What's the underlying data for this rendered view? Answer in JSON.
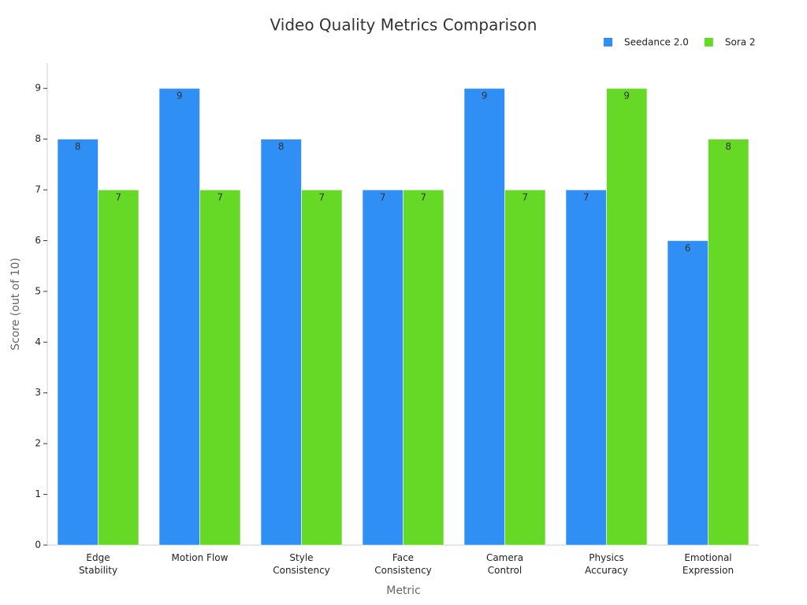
{
  "chart_data": {
    "type": "bar",
    "title": "Video Quality Metrics Comparison",
    "x_label": "Metric",
    "y_label": "Score (out of 10)",
    "categories": [
      "Edge Stability",
      "Motion Flow",
      "Style Consistency",
      "Face Consistency",
      "Camera Control",
      "Physics Accuracy",
      "Emotional Expression"
    ],
    "series": [
      {
        "name": "Seedance 2.0",
        "color": "#2f8ff5",
        "values": [
          8,
          9,
          8,
          7,
          9,
          7,
          6
        ]
      },
      {
        "name": "Sora 2",
        "color": "#66d926",
        "values": [
          7,
          7,
          7,
          7,
          7,
          9,
          8
        ]
      }
    ],
    "ylim": [
      0,
      9.5
    ],
    "yticks": [
      0,
      1,
      2,
      3,
      4,
      5,
      6,
      7,
      8,
      9
    ],
    "legend": "top-right"
  }
}
